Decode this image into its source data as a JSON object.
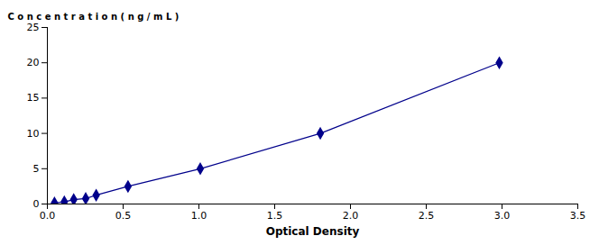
{
  "chart_data": {
    "type": "line",
    "xlabel": "Optical Density",
    "ylabel": "C o n c e n t r a t i o n ( n g / m L )",
    "x": [
      0.047,
      0.112,
      0.174,
      0.253,
      0.322,
      0.532,
      1.009,
      1.801,
      2.982
    ],
    "values": [
      0.156,
      0.312,
      0.625,
      0.781,
      1.25,
      2.5,
      5.0,
      10.0,
      20.0
    ],
    "color": "#00008B",
    "marker": "diamond",
    "line_style": "solid",
    "xlim": [
      0,
      3.5
    ],
    "ylim": [
      0,
      25
    ],
    "xticks": [
      {
        "value": 0,
        "label": "0.0"
      },
      0.5,
      {
        "value": 1,
        "label": "1.0"
      },
      1.5,
      {
        "value": 2,
        "label": "2.0"
      },
      2.5,
      {
        "value": 3,
        "label": "3.0"
      },
      3.5
    ],
    "yticks": [
      0,
      5,
      10,
      15,
      20,
      25
    ],
    "grid": false
  }
}
